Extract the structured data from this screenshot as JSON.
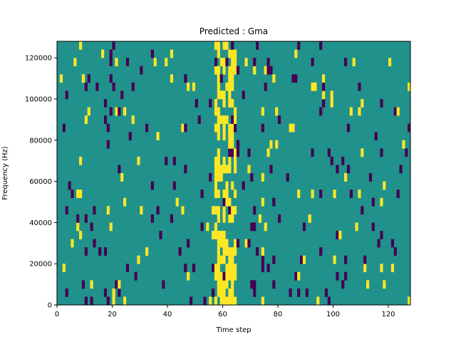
{
  "chart_data": {
    "type": "heatmap",
    "title": "Predicted : Gma",
    "xlabel": "Time step",
    "ylabel": "Frequency (Hz)",
    "xlim": [
      0,
      128
    ],
    "ylim": [
      0,
      128000
    ],
    "x_ticks": [
      0,
      20,
      40,
      60,
      80,
      100,
      120
    ],
    "y_ticks": [
      0,
      20000,
      40000,
      60000,
      80000,
      100000,
      120000
    ],
    "x_tick_labels": [
      "0",
      "20",
      "40",
      "60",
      "80",
      "100",
      "120"
    ],
    "y_tick_labels": [
      "0",
      "20000",
      "40000",
      "60000",
      "80000",
      "100000",
      "120000"
    ],
    "colormap": "viridis",
    "background_value": 0,
    "colors": {
      "low": "#440154",
      "mid": "#21918c",
      "high": "#fde725"
    },
    "grid": false,
    "legend": "none"
  }
}
